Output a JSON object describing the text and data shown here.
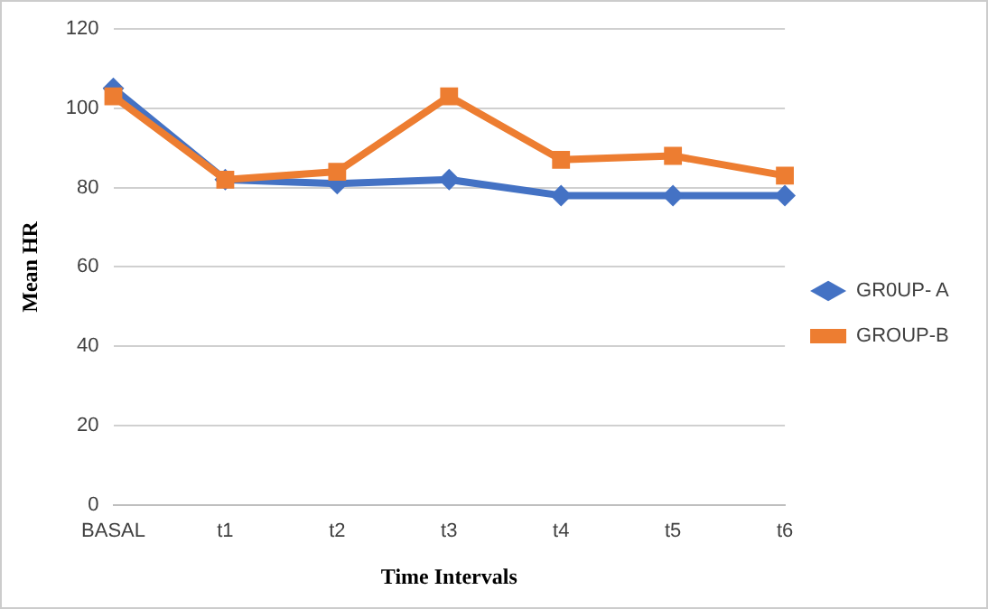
{
  "chart_data": {
    "type": "line",
    "xlabel": "Time Intervals",
    "ylabel": "Mean HR",
    "categories": [
      "BASAL",
      "t1",
      "t2",
      "t3",
      "t4",
      "t5",
      "t6"
    ],
    "series": [
      {
        "name": "GR0UP- A",
        "color": "#4472c4",
        "marker": "diamond",
        "values": [
          105,
          82,
          81,
          82,
          78,
          78,
          78
        ]
      },
      {
        "name": "GROUP-B",
        "color": "#ed7d31",
        "marker": "square",
        "values": [
          103,
          82,
          84,
          103,
          87,
          88,
          83
        ]
      }
    ],
    "ylim": [
      0,
      120
    ],
    "yticks": [
      0,
      20,
      40,
      60,
      80,
      100,
      120
    ],
    "grid": "y",
    "legend": "right",
    "line_style": "solid"
  }
}
